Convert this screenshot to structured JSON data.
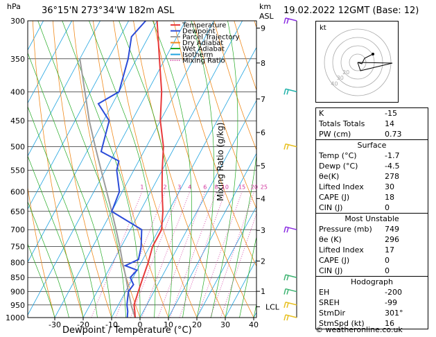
{
  "header": {
    "station": "36°15'N  273°34'W  182m  ASL",
    "datetime": "19.02.2022  12GMT  (Base: 12)",
    "hpa_label": "hPa",
    "km_label": "km",
    "asl_label": "ASL"
  },
  "legend": [
    {
      "name": "Temperature",
      "color": "#e8383a"
    },
    {
      "name": "Dewpoint",
      "color": "#2b4bd8"
    },
    {
      "name": "Parcel Trajectory",
      "color": "#9c9c9c"
    },
    {
      "name": "Dry Adiabat",
      "color": "#f08a1c"
    },
    {
      "name": "Wet Adiabat",
      "color": "#22aa22"
    },
    {
      "name": "Isotherm",
      "color": "#1fa3e0"
    },
    {
      "name": "Mixing Ratio",
      "color": "#d0309a"
    }
  ],
  "chart_data": {
    "type": "skew-t",
    "xlabel": "Dewpoint / Temperature (°C)",
    "ylabel_right": "Mixing Ratio (g/kg)",
    "x_ticks": [
      -30,
      -20,
      -10,
      0,
      10,
      20,
      30,
      40
    ],
    "pressure_levels": [
      300,
      350,
      400,
      450,
      500,
      550,
      600,
      650,
      700,
      750,
      800,
      850,
      900,
      950,
      1000
    ],
    "height_km": [
      {
        "label": "9",
        "p": 309
      },
      {
        "label": "8",
        "p": 356
      },
      {
        "label": "7",
        "p": 412
      },
      {
        "label": "6",
        "p": 472
      },
      {
        "label": "5",
        "p": 540
      },
      {
        "label": "4",
        "p": 617
      },
      {
        "label": "3",
        "p": 702
      },
      {
        "label": "2",
        "p": 795
      },
      {
        "label": "1",
        "p": 899
      },
      {
        "label": "LCL",
        "p": 957
      }
    ],
    "mixing_ratio_labels": [
      "1",
      "2",
      "3",
      "4",
      "6",
      "8",
      "10",
      "15",
      "20",
      "25"
    ],
    "temperature": [
      {
        "p": 1000,
        "t": -1.7
      },
      {
        "p": 975,
        "t": -3.0
      },
      {
        "p": 950,
        "t": -4.5
      },
      {
        "p": 925,
        "t": -5.0
      },
      {
        "p": 900,
        "t": -5.5
      },
      {
        "p": 850,
        "t": -6.5
      },
      {
        "p": 800,
        "t": -7.5
      },
      {
        "p": 750,
        "t": -9.0
      },
      {
        "p": 700,
        "t": -9.0
      },
      {
        "p": 650,
        "t": -12.0
      },
      {
        "p": 600,
        "t": -16.0
      },
      {
        "p": 550,
        "t": -20.0
      },
      {
        "p": 500,
        "t": -24.0
      },
      {
        "p": 450,
        "t": -30.0
      },
      {
        "p": 400,
        "t": -35.0
      },
      {
        "p": 350,
        "t": -42.0
      },
      {
        "p": 300,
        "t": -50.0
      }
    ],
    "dewpoint": [
      {
        "p": 1000,
        "t": -4.5
      },
      {
        "p": 975,
        "t": -5.5
      },
      {
        "p": 950,
        "t": -7.0
      },
      {
        "p": 900,
        "t": -9.0
      },
      {
        "p": 875,
        "t": -8.5
      },
      {
        "p": 850,
        "t": -11.0
      },
      {
        "p": 825,
        "t": -10.0
      },
      {
        "p": 810,
        "t": -15.0
      },
      {
        "p": 790,
        "t": -11.5
      },
      {
        "p": 750,
        "t": -13.0
      },
      {
        "p": 700,
        "t": -16.0
      },
      {
        "p": 650,
        "t": -30.0
      },
      {
        "p": 600,
        "t": -31.0
      },
      {
        "p": 550,
        "t": -36.0
      },
      {
        "p": 530,
        "t": -37.0
      },
      {
        "p": 510,
        "t": -45.0
      },
      {
        "p": 450,
        "t": -48.0
      },
      {
        "p": 420,
        "t": -55.0
      },
      {
        "p": 400,
        "t": -50.0
      },
      {
        "p": 350,
        "t": -53.0
      },
      {
        "p": 320,
        "t": -56.0
      },
      {
        "p": 300,
        "t": -54.0
      }
    ],
    "parcel": [
      {
        "p": 1000,
        "t": -1.7
      },
      {
        "p": 957,
        "t": -5.0
      },
      {
        "p": 900,
        "t": -9.0
      },
      {
        "p": 850,
        "t": -12.5
      },
      {
        "p": 800,
        "t": -16.5
      },
      {
        "p": 750,
        "t": -20.5
      },
      {
        "p": 700,
        "t": -25.0
      },
      {
        "p": 650,
        "t": -30.0
      },
      {
        "p": 600,
        "t": -35.5
      },
      {
        "p": 550,
        "t": -41.5
      },
      {
        "p": 500,
        "t": -48.0
      },
      {
        "p": 450,
        "t": -55.0
      },
      {
        "p": 400,
        "t": -62.0
      },
      {
        "p": 350,
        "t": -70.0
      }
    ],
    "wind_barbs": [
      {
        "p": 300,
        "color": "#8a2be2"
      },
      {
        "p": 400,
        "color": "#20b2aa"
      },
      {
        "p": 500,
        "color": "#e8c020"
      },
      {
        "p": 700,
        "color": "#8a2be2"
      },
      {
        "p": 850,
        "color": "#3cb371"
      },
      {
        "p": 900,
        "color": "#3cb371"
      },
      {
        "p": 950,
        "color": "#e8c020"
      },
      {
        "p": 1000,
        "color": "#e8c020"
      }
    ]
  },
  "hodograph": {
    "label": "kt",
    "rings": [
      "10",
      "20",
      "30",
      "40"
    ]
  },
  "indices": {
    "top": [
      {
        "label": "K",
        "value": "-15"
      },
      {
        "label": "Totals Totals",
        "value": "14"
      },
      {
        "label": "PW (cm)",
        "value": "0.73"
      }
    ],
    "surface": {
      "title": "Surface",
      "rows": [
        {
          "label": "Temp (°C)",
          "value": "-1.7"
        },
        {
          "label": "Dewp (°C)",
          "value": "-4.5"
        },
        {
          "label": "θe(K)",
          "value": "278"
        },
        {
          "label": "Lifted Index",
          "value": "30"
        },
        {
          "label": "CAPE (J)",
          "value": "18"
        },
        {
          "label": "CIN (J)",
          "value": "0"
        }
      ]
    },
    "most_unstable": {
      "title": "Most Unstable",
      "rows": [
        {
          "label": "Pressure (mb)",
          "value": "749"
        },
        {
          "label": "θe (K)",
          "value": "296"
        },
        {
          "label": "Lifted Index",
          "value": "17"
        },
        {
          "label": "CAPE (J)",
          "value": "0"
        },
        {
          "label": "CIN (J)",
          "value": "0"
        }
      ]
    },
    "hodo_table": {
      "title": "Hodograph",
      "rows": [
        {
          "label": "EH",
          "value": "-200"
        },
        {
          "label": "SREH",
          "value": "-99"
        },
        {
          "label": "StmDir",
          "value": "301°"
        },
        {
          "label": "StmSpd (kt)",
          "value": "16"
        }
      ]
    }
  },
  "footer": "© weatheronline.co.uk"
}
